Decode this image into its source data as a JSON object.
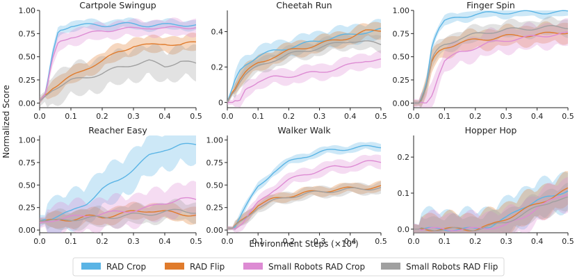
{
  "figure": {
    "ylabel": "Normalized Score",
    "xlabel": "Environment Steps (×10⁶)",
    "legend": [
      "RAD Crop",
      "RAD Flip",
      "Small Robots RAD Crop",
      "Small Robots RAD Flip"
    ],
    "colors": {
      "RAD Crop": "#5ab4e5",
      "RAD Flip": "#e07b2c",
      "Small Robots RAD Crop": "#dd8bd3",
      "Small Robots RAD Flip": "#a0a0a0"
    }
  },
  "chart_data": [
    {
      "type": "line",
      "title": "Cartpole Swingup",
      "xlim": [
        0,
        0.5
      ],
      "ylim": [
        -0.05,
        1.0
      ],
      "x": [
        0.0,
        0.02,
        0.04,
        0.06,
        0.1,
        0.15,
        0.2,
        0.25,
        0.3,
        0.35,
        0.4,
        0.45,
        0.5
      ],
      "yticks": [
        0.0,
        0.25,
        0.5,
        0.75,
        1.0
      ],
      "ytick_labels": [
        "0.00",
        "0.25",
        "0.50",
        "0.75",
        "1.00"
      ],
      "xticks": [
        0.0,
        0.1,
        0.2,
        0.3,
        0.4,
        0.5
      ],
      "series": [
        {
          "name": "RAD Crop",
          "values": [
            0.02,
            0.1,
            0.5,
            0.78,
            0.84,
            0.84,
            0.84,
            0.85,
            0.85,
            0.84,
            0.84,
            0.85,
            0.84
          ],
          "spread": 0.06
        },
        {
          "name": "RAD Flip",
          "values": [
            0.02,
            0.1,
            0.17,
            0.2,
            0.28,
            0.38,
            0.45,
            0.55,
            0.62,
            0.62,
            0.65,
            0.62,
            0.66
          ],
          "spread": 0.1
        },
        {
          "name": "Small Robots RAD Crop",
          "values": [
            0.02,
            0.1,
            0.45,
            0.65,
            0.72,
            0.74,
            0.78,
            0.8,
            0.8,
            0.82,
            0.8,
            0.82,
            0.82
          ],
          "spread": 0.1
        },
        {
          "name": "Small Robots RAD Flip",
          "values": [
            0.02,
            0.08,
            0.15,
            0.18,
            0.24,
            0.28,
            0.32,
            0.38,
            0.42,
            0.45,
            0.4,
            0.45,
            0.42
          ],
          "spread": 0.2
        }
      ]
    },
    {
      "type": "line",
      "title": "Cheetah Run",
      "xlim": [
        0,
        0.5
      ],
      "ylim": [
        -0.03,
        0.52
      ],
      "x": [
        0.0,
        0.02,
        0.04,
        0.06,
        0.1,
        0.15,
        0.2,
        0.25,
        0.3,
        0.35,
        0.4,
        0.45,
        0.5
      ],
      "yticks": [
        0.0,
        0.2,
        0.4
      ],
      "ytick_labels": [
        "0",
        "0.2",
        "0.4"
      ],
      "xticks": [
        0.0,
        0.1,
        0.2,
        0.3,
        0.4,
        0.5
      ],
      "series": [
        {
          "name": "RAD Crop",
          "values": [
            0.0,
            0.1,
            0.18,
            0.22,
            0.26,
            0.29,
            0.31,
            0.33,
            0.35,
            0.37,
            0.38,
            0.4,
            0.41
          ],
          "spread": 0.06
        },
        {
          "name": "RAD Flip",
          "values": [
            0.0,
            0.07,
            0.13,
            0.17,
            0.22,
            0.26,
            0.29,
            0.31,
            0.33,
            0.35,
            0.37,
            0.4,
            0.41
          ],
          "spread": 0.05
        },
        {
          "name": "Small Robots RAD Crop",
          "values": [
            0.0,
            0.0,
            0.0,
            0.08,
            0.12,
            0.14,
            0.15,
            0.16,
            0.17,
            0.19,
            0.21,
            0.24,
            0.24
          ],
          "spread": 0.05
        },
        {
          "name": "Small Robots RAD Flip",
          "values": [
            0.0,
            0.06,
            0.12,
            0.16,
            0.2,
            0.24,
            0.27,
            0.29,
            0.31,
            0.33,
            0.35,
            0.34,
            0.33
          ],
          "spread": 0.05
        }
      ]
    },
    {
      "type": "line",
      "title": "Finger Spin",
      "xlim": [
        0,
        0.5
      ],
      "ylim": [
        -0.05,
        1.0
      ],
      "x": [
        0.0,
        0.02,
        0.04,
        0.06,
        0.08,
        0.1,
        0.15,
        0.2,
        0.25,
        0.3,
        0.35,
        0.4,
        0.45,
        0.5
      ],
      "yticks": [
        0.0,
        0.25,
        0.5,
        0.75,
        1.0
      ],
      "ytick_labels": [
        "0.00",
        "0.25",
        "0.50",
        "0.75",
        "1.00"
      ],
      "xticks": [
        0.0,
        0.1,
        0.2,
        0.3,
        0.4,
        0.5
      ],
      "series": [
        {
          "name": "RAD Crop",
          "values": [
            0.0,
            0.0,
            0.2,
            0.65,
            0.8,
            0.88,
            0.93,
            0.96,
            0.97,
            0.98,
            0.98,
            0.98,
            0.98,
            0.98
          ],
          "spread": 0.06
        },
        {
          "name": "RAD Flip",
          "values": [
            0.0,
            0.0,
            0.15,
            0.45,
            0.55,
            0.6,
            0.65,
            0.68,
            0.7,
            0.72,
            0.73,
            0.74,
            0.75,
            0.77
          ],
          "spread": 0.12
        },
        {
          "name": "Small Robots RAD Crop",
          "values": [
            0.0,
            0.0,
            0.0,
            0.1,
            0.3,
            0.45,
            0.55,
            0.6,
            0.65,
            0.68,
            0.7,
            0.72,
            0.74,
            0.75
          ],
          "spread": 0.15
        },
        {
          "name": "Small Robots RAD Flip",
          "values": [
            0.0,
            0.0,
            0.15,
            0.48,
            0.58,
            0.63,
            0.7,
            0.74,
            0.77,
            0.79,
            0.8,
            0.81,
            0.82,
            0.82
          ],
          "spread": 0.1
        }
      ]
    },
    {
      "type": "line",
      "title": "Reacher Easy",
      "xlim": [
        0,
        0.5
      ],
      "ylim": [
        -0.03,
        1.05
      ],
      "x": [
        0.0,
        0.05,
        0.1,
        0.15,
        0.2,
        0.25,
        0.3,
        0.35,
        0.4,
        0.45,
        0.5
      ],
      "yticks": [
        0.0,
        0.25,
        0.5,
        0.75,
        1.0
      ],
      "ytick_labels": [
        "0.00",
        "0.25",
        "0.50",
        "0.75",
        "1.00"
      ],
      "xticks": [
        0.0,
        0.1,
        0.2,
        0.3,
        0.4,
        0.5
      ],
      "series": [
        {
          "name": "RAD Crop",
          "values": [
            0.1,
            0.15,
            0.2,
            0.3,
            0.45,
            0.55,
            0.68,
            0.82,
            0.9,
            0.94,
            0.95
          ],
          "spread": 0.25
        },
        {
          "name": "RAD Flip",
          "values": [
            0.1,
            0.1,
            0.12,
            0.15,
            0.14,
            0.18,
            0.2,
            0.22,
            0.2,
            0.18,
            0.17
          ],
          "spread": 0.1
        },
        {
          "name": "Small Robots RAD Crop",
          "values": [
            0.08,
            0.12,
            0.14,
            0.16,
            0.18,
            0.2,
            0.22,
            0.25,
            0.3,
            0.35,
            0.33
          ],
          "spread": 0.2
        },
        {
          "name": "Small Robots RAD Flip",
          "values": [
            0.1,
            0.1,
            0.12,
            0.13,
            0.14,
            0.15,
            0.17,
            0.18,
            0.2,
            0.22,
            0.2
          ],
          "spread": 0.12
        }
      ]
    },
    {
      "type": "line",
      "title": "Walker Walk",
      "xlim": [
        0,
        0.5
      ],
      "ylim": [
        -0.03,
        1.05
      ],
      "x": [
        0.0,
        0.02,
        0.05,
        0.1,
        0.15,
        0.2,
        0.25,
        0.3,
        0.35,
        0.4,
        0.45,
        0.5
      ],
      "yticks": [
        0.0,
        0.25,
        0.5,
        0.75,
        1.0
      ],
      "ytick_labels": [
        "0.00",
        "0.25",
        "0.50",
        "0.75",
        "1.00"
      ],
      "xticks": [
        0.0,
        0.1,
        0.2,
        0.3,
        0.4,
        0.5
      ],
      "series": [
        {
          "name": "RAD Crop",
          "values": [
            0.02,
            0.02,
            0.2,
            0.48,
            0.65,
            0.75,
            0.82,
            0.86,
            0.89,
            0.91,
            0.92,
            0.93
          ],
          "spread": 0.05
        },
        {
          "name": "RAD Flip",
          "values": [
            0.02,
            0.02,
            0.12,
            0.28,
            0.34,
            0.38,
            0.41,
            0.43,
            0.45,
            0.46,
            0.47,
            0.48
          ],
          "spread": 0.06
        },
        {
          "name": "Small Robots RAD Crop",
          "values": [
            0.02,
            0.02,
            0.08,
            0.3,
            0.45,
            0.55,
            0.62,
            0.66,
            0.7,
            0.72,
            0.75,
            0.76
          ],
          "spread": 0.08
        },
        {
          "name": "Small Robots RAD Flip",
          "values": [
            0.02,
            0.02,
            0.1,
            0.26,
            0.32,
            0.37,
            0.4,
            0.42,
            0.44,
            0.45,
            0.46,
            0.47
          ],
          "spread": 0.07
        }
      ]
    },
    {
      "type": "line",
      "title": "Hopper Hop",
      "xlim": [
        0,
        0.5
      ],
      "ylim": [
        -0.01,
        0.26
      ],
      "x": [
        0.0,
        0.1,
        0.2,
        0.22,
        0.25,
        0.3,
        0.35,
        0.4,
        0.45,
        0.5
      ],
      "yticks": [
        0.0,
        0.1,
        0.2
      ],
      "ytick_labels": [
        "0.0",
        "0.1",
        "0.2"
      ],
      "xticks": [
        0.0,
        0.1,
        0.2,
        0.3,
        0.4,
        0.5
      ],
      "series": [
        {
          "name": "RAD Crop",
          "values": [
            0.0,
            0.0,
            0.0,
            0.005,
            0.01,
            0.03,
            0.06,
            0.08,
            0.09,
            0.11
          ],
          "spread": 0.06
        },
        {
          "name": "RAD Flip",
          "values": [
            0.0,
            0.0,
            0.0,
            0.004,
            0.01,
            0.03,
            0.05,
            0.07,
            0.09,
            0.11
          ],
          "spread": 0.05
        },
        {
          "name": "Small Robots RAD Crop",
          "values": [
            0.0,
            0.0,
            0.0,
            0.002,
            0.005,
            0.01,
            0.03,
            0.06,
            0.08,
            0.1
          ],
          "spread": 0.05
        },
        {
          "name": "Small Robots RAD Flip",
          "values": [
            0.0,
            0.0,
            0.0,
            0.003,
            0.008,
            0.02,
            0.04,
            0.06,
            0.08,
            0.085
          ],
          "spread": 0.04
        }
      ]
    }
  ]
}
